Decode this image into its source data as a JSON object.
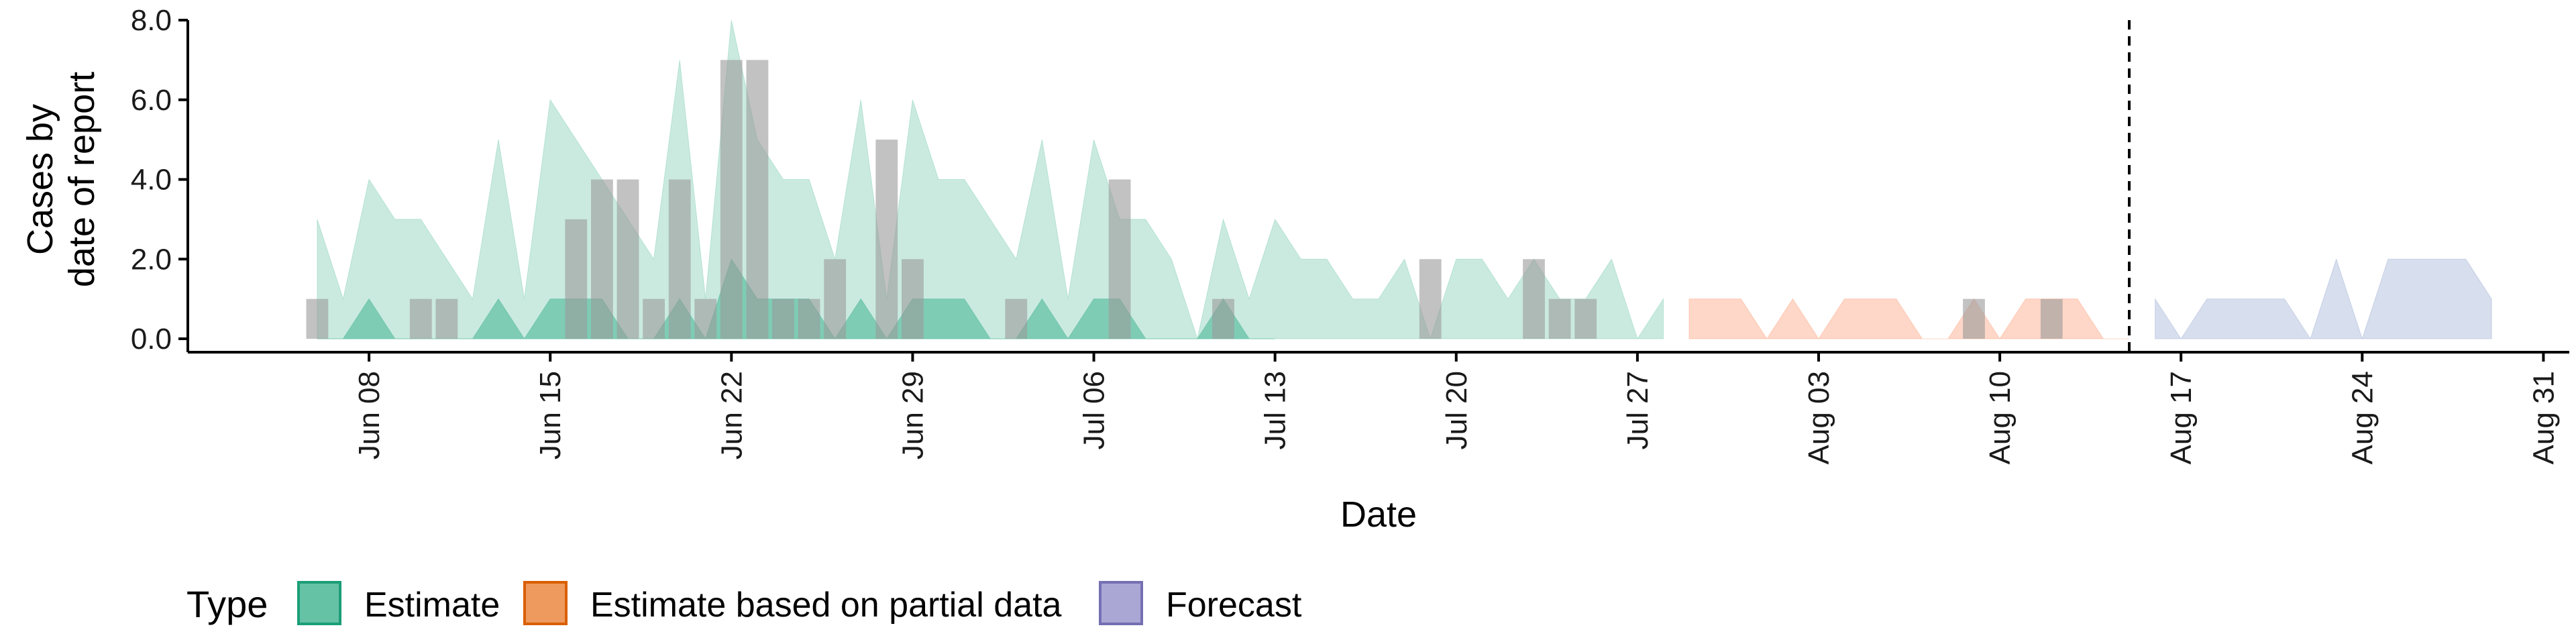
{
  "chart_data": {
    "type": "area",
    "xlabel": "Date",
    "ylabel": [
      "Cases by",
      "date of report"
    ],
    "ylim": [
      0,
      8
    ],
    "y_ticks": [
      0,
      2,
      4,
      6,
      8
    ],
    "y_tick_labels": [
      "0.0",
      "2.0",
      "4.0",
      "6.0",
      "8.0"
    ],
    "x_range": [
      "2020-06-01",
      "2020-09-01"
    ],
    "x_ticks": [
      "2020-06-08",
      "2020-06-15",
      "2020-06-22",
      "2020-06-29",
      "2020-07-06",
      "2020-07-13",
      "2020-07-20",
      "2020-07-27",
      "2020-08-03",
      "2020-08-10",
      "2020-08-17",
      "2020-08-24",
      "2020-08-31"
    ],
    "x_tick_labels": [
      "Jun 08",
      "Jun 15",
      "Jun 22",
      "Jun 29",
      "Jul 06",
      "Jul 13",
      "Jul 20",
      "Jul 27",
      "Aug 03",
      "Aug 10",
      "Aug 17",
      "Aug 24",
      "Aug 31"
    ],
    "forecast_date": "2020-08-15",
    "legend": {
      "title": "Type",
      "position": "bottom",
      "items": [
        {
          "label": "Estimate",
          "fill": "#66c2a5",
          "stroke": "#1b9e77"
        },
        {
          "label": "Estimate based on partial data",
          "fill": "#ee9a5e",
          "stroke": "#d95f02"
        },
        {
          "label": "Forecast",
          "fill": "#aaa7d4",
          "stroke": "#7570b3"
        }
      ]
    },
    "colors": {
      "estimate": "#66c2a5",
      "partial": "#fc8d62",
      "forecast": "#8da0cb",
      "observed_bars": "#9a9a9a"
    },
    "series": [
      {
        "name": "Estimate",
        "role": "outer_band",
        "x": [
          "2020-06-06",
          "2020-06-07",
          "2020-06-08",
          "2020-06-09",
          "2020-06-10",
          "2020-06-11",
          "2020-06-12",
          "2020-06-13",
          "2020-06-14",
          "2020-06-15",
          "2020-06-16",
          "2020-06-17",
          "2020-06-18",
          "2020-06-19",
          "2020-06-20",
          "2020-06-21",
          "2020-06-22",
          "2020-06-23",
          "2020-06-24",
          "2020-06-25",
          "2020-06-26",
          "2020-06-27",
          "2020-06-28",
          "2020-06-29",
          "2020-06-30",
          "2020-07-01",
          "2020-07-02",
          "2020-07-03",
          "2020-07-04",
          "2020-07-05",
          "2020-07-06",
          "2020-07-07",
          "2020-07-08",
          "2020-07-09",
          "2020-07-10",
          "2020-07-11",
          "2020-07-12",
          "2020-07-13",
          "2020-07-14",
          "2020-07-15",
          "2020-07-16",
          "2020-07-17",
          "2020-07-18",
          "2020-07-19",
          "2020-07-20",
          "2020-07-21",
          "2020-07-22",
          "2020-07-23",
          "2020-07-24",
          "2020-07-25",
          "2020-07-26",
          "2020-07-27",
          "2020-07-28"
        ],
        "upper": [
          3,
          1,
          4,
          3,
          3,
          2,
          1,
          5,
          1,
          6,
          5,
          4,
          3,
          2,
          7,
          1,
          8,
          5,
          4,
          4,
          2,
          6,
          1,
          6,
          4,
          4,
          3,
          2,
          5,
          1,
          5,
          3,
          3,
          2,
          0,
          3,
          1,
          3,
          2,
          2,
          1,
          1,
          2,
          0,
          2,
          2,
          1,
          2,
          1,
          1,
          2,
          0,
          1
        ],
        "lower": [
          0,
          0,
          0,
          0,
          0,
          0,
          0,
          0,
          0,
          0,
          0,
          0,
          0,
          0,
          0,
          0,
          0,
          0,
          0,
          0,
          0,
          0,
          0,
          0,
          0,
          0,
          0,
          0,
          0,
          0,
          0,
          0,
          0,
          0,
          0,
          0,
          0,
          0,
          0,
          0,
          0,
          0,
          0,
          0,
          0,
          0,
          0,
          0,
          0,
          0,
          0,
          0,
          0
        ]
      },
      {
        "name": "Estimate",
        "role": "inner_band",
        "x": [
          "2020-06-06",
          "2020-06-07",
          "2020-06-08",
          "2020-06-09",
          "2020-06-10",
          "2020-06-11",
          "2020-06-12",
          "2020-06-13",
          "2020-06-14",
          "2020-06-15",
          "2020-06-16",
          "2020-06-17",
          "2020-06-18",
          "2020-06-19",
          "2020-06-20",
          "2020-06-21",
          "2020-06-22",
          "2020-06-23",
          "2020-06-24",
          "2020-06-25",
          "2020-06-26",
          "2020-06-27",
          "2020-06-28",
          "2020-06-29",
          "2020-06-30",
          "2020-07-01",
          "2020-07-02",
          "2020-07-03",
          "2020-07-04",
          "2020-07-05",
          "2020-07-06",
          "2020-07-07",
          "2020-07-08",
          "2020-07-09",
          "2020-07-10",
          "2020-07-11",
          "2020-07-12",
          "2020-07-13"
        ],
        "upper": [
          0,
          0,
          1,
          0,
          0,
          0,
          0,
          1,
          0,
          1,
          1,
          1,
          0,
          0,
          1,
          0,
          2,
          1,
          1,
          1,
          0,
          1,
          0,
          1,
          1,
          1,
          0,
          0,
          1,
          0,
          1,
          1,
          0,
          0,
          0,
          1,
          0,
          0
        ],
        "lower": [
          0,
          0,
          0,
          0,
          0,
          0,
          0,
          0,
          0,
          0,
          0,
          0,
          0,
          0,
          0,
          0,
          0,
          0,
          0,
          0,
          0,
          0,
          0,
          0,
          0,
          0,
          0,
          0,
          0,
          0,
          0,
          0,
          0,
          0,
          0,
          0,
          0,
          0
        ]
      },
      {
        "name": "Estimate based on partial data",
        "role": "outer_band",
        "x": [
          "2020-07-29",
          "2020-07-30",
          "2020-07-31",
          "2020-08-01",
          "2020-08-02",
          "2020-08-03",
          "2020-08-04",
          "2020-08-05",
          "2020-08-06",
          "2020-08-07",
          "2020-08-08",
          "2020-08-09",
          "2020-08-10",
          "2020-08-11",
          "2020-08-12",
          "2020-08-13",
          "2020-08-14",
          "2020-08-15"
        ],
        "upper": [
          1,
          1,
          1,
          0,
          1,
          0,
          1,
          1,
          1,
          0,
          0,
          1,
          0,
          1,
          1,
          1,
          0,
          0
        ],
        "lower": [
          0,
          0,
          0,
          0,
          0,
          0,
          0,
          0,
          0,
          0,
          0,
          0,
          0,
          0,
          0,
          0,
          0,
          0
        ]
      },
      {
        "name": "Forecast",
        "role": "outer_band",
        "x": [
          "2020-08-16",
          "2020-08-17",
          "2020-08-18",
          "2020-08-19",
          "2020-08-20",
          "2020-08-21",
          "2020-08-22",
          "2020-08-23",
          "2020-08-24",
          "2020-08-25",
          "2020-08-26",
          "2020-08-27",
          "2020-08-28",
          "2020-08-29"
        ],
        "upper": [
          1,
          0,
          1,
          1,
          1,
          1,
          0,
          2,
          0,
          2,
          2,
          2,
          2,
          1
        ],
        "lower": [
          0,
          0,
          0,
          0,
          0,
          0,
          0,
          0,
          0,
          0,
          0,
          0,
          0,
          0
        ]
      }
    ],
    "observed_cases": {
      "x": [
        "2020-06-06",
        "2020-06-10",
        "2020-06-11",
        "2020-06-16",
        "2020-06-17",
        "2020-06-18",
        "2020-06-19",
        "2020-06-20",
        "2020-06-21",
        "2020-06-22",
        "2020-06-23",
        "2020-06-24",
        "2020-06-25",
        "2020-06-26",
        "2020-06-28",
        "2020-06-29",
        "2020-07-03",
        "2020-07-07",
        "2020-07-11",
        "2020-07-19",
        "2020-07-23",
        "2020-07-24",
        "2020-07-25",
        "2020-08-09",
        "2020-08-12"
      ],
      "values": [
        1,
        1,
        1,
        3,
        4,
        4,
        1,
        4,
        1,
        7,
        7,
        1,
        1,
        2,
        5,
        2,
        1,
        4,
        1,
        2,
        2,
        1,
        1,
        1,
        1
      ]
    }
  }
}
